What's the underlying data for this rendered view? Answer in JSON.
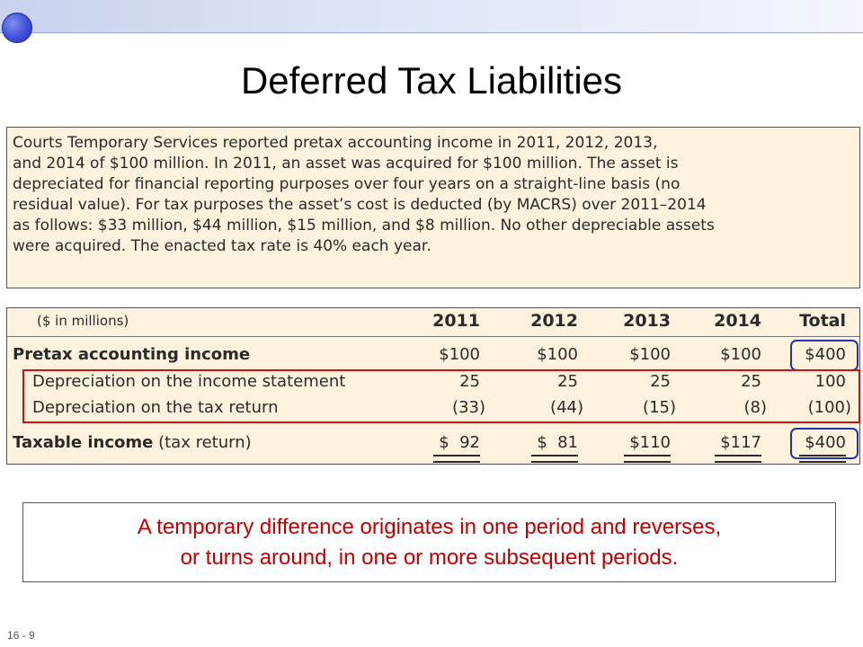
{
  "slide": {
    "title": "Deferred Tax Liabilities",
    "page_number": "16 - 9"
  },
  "problem_lines": [
    "Courts Temporary Services reported pretax accounting income in 2011, 2012, 2013,",
    "and 2014 of $100 million. In 2011, an asset was acquired for $100 million. The asset is",
    "depreciated for financial reporting purposes over four years on a straight-line basis (no",
    "residual value). For tax purposes the asset’s cost is deducted (by MACRS) over 2011–2014",
    "as follows: $33 million, $44 million, $15 million, and $8 million. No other depreciable assets",
    "were acquired. The enacted tax rate is 40% each year."
  ],
  "table": {
    "unit_label": "($ in millions)",
    "columns": [
      "2011",
      "2012",
      "2013",
      "2014",
      "Total"
    ],
    "rows": [
      {
        "label": "Pretax accounting income",
        "label_suffix": "",
        "values": [
          "$100",
          "$100",
          "$100",
          "$100",
          "$400"
        ]
      },
      {
        "label": "Depreciation on the income statement",
        "label_suffix": "",
        "values": [
          "25",
          "25",
          "25",
          "25",
          "100"
        ]
      },
      {
        "label": "Depreciation on the tax return",
        "label_suffix": "",
        "values": [
          "(33)",
          "(44)",
          "(15)",
          "(8)",
          "(100)"
        ]
      },
      {
        "label": "Taxable income",
        "label_suffix": " (tax return)",
        "values": [
          "$  92",
          "$  81",
          "$110",
          "$117",
          "$400"
        ]
      }
    ]
  },
  "note": {
    "line1": "A temporary difference originates in one period and reverses,",
    "line2": "or turns around, in one or more subsequent periods."
  },
  "colors": {
    "highlight_blue": "#2233aa",
    "highlight_red": "#cc1111",
    "note_text": "#c00000",
    "panel_background": "#fdf2dd"
  }
}
